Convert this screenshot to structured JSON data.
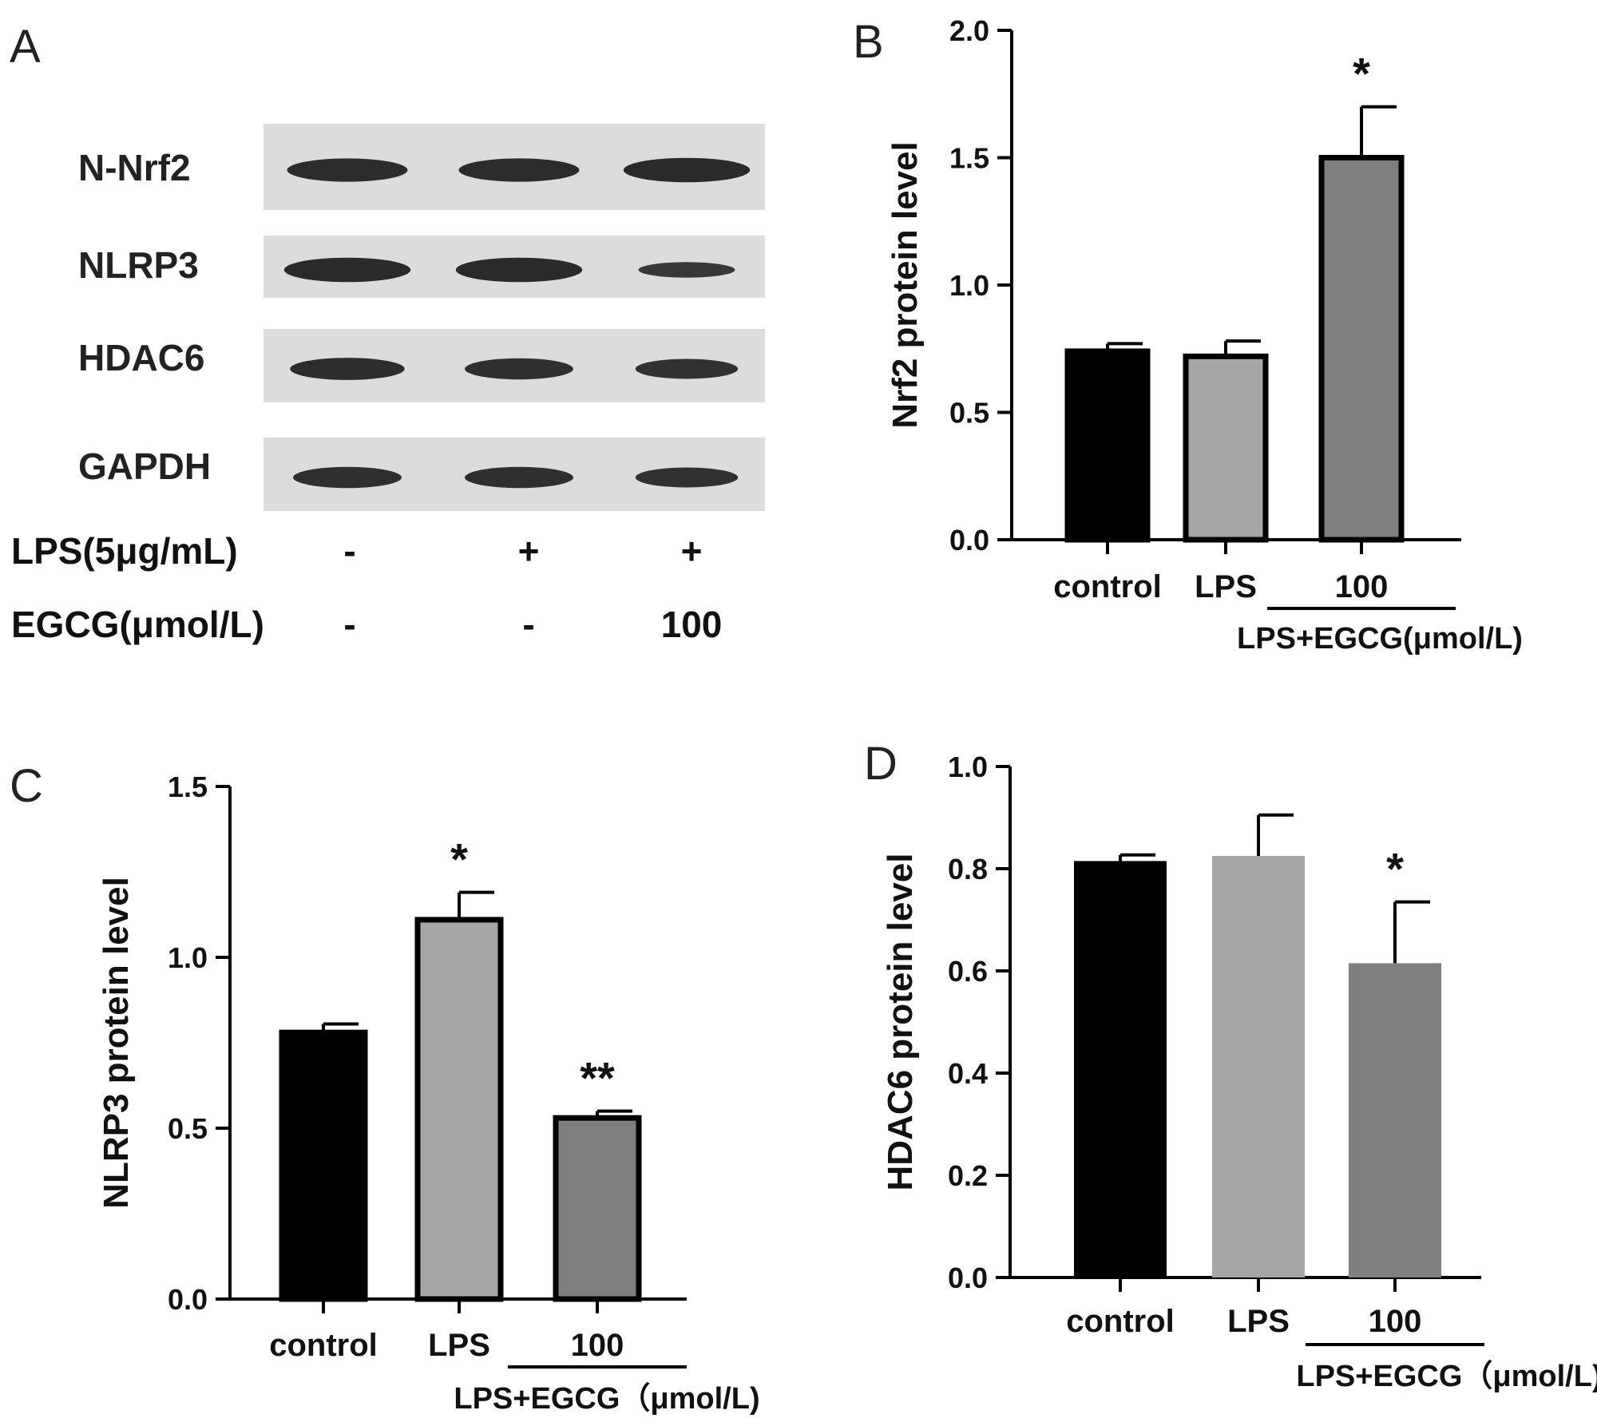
{
  "panel_a": {
    "label": "A",
    "blots": [
      {
        "name": "N-Nrf2",
        "bands": [
          0.9,
          0.9,
          0.95
        ]
      },
      {
        "name": "NLRP3",
        "bands": [
          0.95,
          0.95,
          0.55
        ]
      },
      {
        "name": "HDAC6",
        "bands": [
          0.85,
          0.8,
          0.75
        ]
      },
      {
        "name": "GAPDH",
        "bands": [
          0.8,
          0.8,
          0.75
        ]
      }
    ],
    "treatments": [
      {
        "name": "LPS(5μg/mL)",
        "values": [
          "-",
          "+",
          "+"
        ]
      },
      {
        "name": "EGCG(μmol/L)",
        "values": [
          "-",
          "-",
          "100"
        ]
      }
    ]
  },
  "chart_data": [
    {
      "panel": "B",
      "type": "bar",
      "categories": [
        "control",
        "LPS",
        "100"
      ],
      "group_label": "LPS+EGCG(μmol/L)",
      "values": [
        0.74,
        0.72,
        1.5
      ],
      "errors": [
        0.03,
        0.06,
        0.2
      ],
      "significance": [
        "",
        "",
        "*"
      ],
      "bar_colors": [
        "#000000",
        "#a6a6a6",
        "#7f7f7f"
      ],
      "ylabel": "Nrf2 protein level",
      "ylim": [
        0,
        2.0
      ],
      "yticks": [
        "0.0",
        "0.5",
        "1.0",
        "1.5",
        "2.0"
      ]
    },
    {
      "panel": "C",
      "type": "bar",
      "categories": [
        "control",
        "LPS",
        "100"
      ],
      "group_label": "LPS+EGCG（μmol/L)",
      "values": [
        0.78,
        1.11,
        0.53
      ],
      "errors": [
        0.025,
        0.08,
        0.02
      ],
      "significance": [
        "",
        "*",
        "**"
      ],
      "bar_colors": [
        "#000000",
        "#a6a6a6",
        "#7f7f7f"
      ],
      "ylabel": "NLRP3 protein level",
      "ylim": [
        0,
        1.5
      ],
      "yticks": [
        "0.0",
        "0.5",
        "1.0",
        "1.5"
      ]
    },
    {
      "panel": "D",
      "type": "bar",
      "categories": [
        "control",
        "LPS",
        "100"
      ],
      "group_label": "LPS+EGCG（μmol/L)",
      "values": [
        0.815,
        0.825,
        0.615
      ],
      "errors": [
        0.012,
        0.08,
        0.12
      ],
      "significance": [
        "",
        "",
        "*"
      ],
      "bar_colors": [
        "#000000",
        "#a6a6a6",
        "#7f7f7f"
      ],
      "ylabel": "HDAC6 protein level",
      "ylim": [
        0,
        1.0
      ],
      "yticks": [
        "0.0",
        "0.2",
        "0.4",
        "0.6",
        "0.8",
        "1.0"
      ]
    }
  ]
}
